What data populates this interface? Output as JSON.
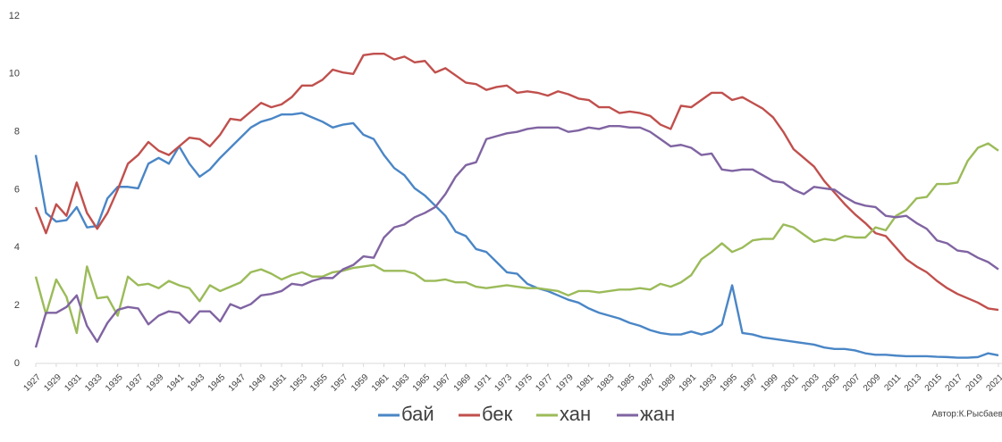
{
  "chart_data": {
    "type": "line",
    "x": [
      1927,
      1928,
      1929,
      1930,
      1931,
      1932,
      1933,
      1934,
      1935,
      1936,
      1937,
      1938,
      1939,
      1940,
      1941,
      1942,
      1943,
      1944,
      1945,
      1946,
      1947,
      1948,
      1949,
      1950,
      1951,
      1952,
      1953,
      1954,
      1955,
      1956,
      1957,
      1958,
      1959,
      1960,
      1961,
      1962,
      1963,
      1964,
      1965,
      1966,
      1967,
      1968,
      1969,
      1970,
      1971,
      1972,
      1973,
      1974,
      1975,
      1976,
      1977,
      1978,
      1979,
      1980,
      1981,
      1982,
      1983,
      1984,
      1985,
      1986,
      1987,
      1988,
      1989,
      1990,
      1991,
      1992,
      1993,
      1994,
      1995,
      1996,
      1997,
      1998,
      1999,
      2000,
      2001,
      2002,
      2003,
      2004,
      2005,
      2006,
      2007,
      2008,
      2009,
      2010,
      2011,
      2012,
      2013,
      2014,
      2015,
      2016,
      2017,
      2018,
      2019,
      2020,
      2021
    ],
    "xlim": [
      1927,
      2021
    ],
    "xticks": [
      1927,
      1929,
      1931,
      1933,
      1935,
      1937,
      1939,
      1941,
      1943,
      1945,
      1947,
      1949,
      1951,
      1953,
      1955,
      1957,
      1959,
      1961,
      1963,
      1965,
      1967,
      1969,
      1971,
      1973,
      1975,
      1977,
      1979,
      1981,
      1983,
      1985,
      1987,
      1989,
      1991,
      1993,
      1995,
      1997,
      1999,
      2001,
      2003,
      2005,
      2007,
      2009,
      2011,
      2013,
      2015,
      2017,
      2019,
      2021
    ],
    "ylim": [
      0,
      12
    ],
    "yticks": [
      0,
      2,
      4,
      6,
      8,
      10,
      12
    ],
    "grid": false,
    "legend": "bottom",
    "annotation": "Автор:К.Рысбаев",
    "series": [
      {
        "name": "бай",
        "color": "#4a86c6",
        "values": [
          7.2,
          5.2,
          4.9,
          4.95,
          5.4,
          4.7,
          4.75,
          5.7,
          6.1,
          6.1,
          6.05,
          6.9,
          7.1,
          6.9,
          7.5,
          6.9,
          6.45,
          6.7,
          7.1,
          7.45,
          7.8,
          8.15,
          8.35,
          8.45,
          8.6,
          8.6,
          8.65,
          8.5,
          8.35,
          8.15,
          8.25,
          8.3,
          7.9,
          7.75,
          7.2,
          6.75,
          6.5,
          6.05,
          5.8,
          5.45,
          5.1,
          4.55,
          4.4,
          3.95,
          3.85,
          3.5,
          3.15,
          3.1,
          2.75,
          2.6,
          2.5,
          2.35,
          2.2,
          2.1,
          1.9,
          1.75,
          1.65,
          1.55,
          1.4,
          1.3,
          1.15,
          1.05,
          1.0,
          1.0,
          1.1,
          1.0,
          1.1,
          1.35,
          2.7,
          1.05,
          1.0,
          0.9,
          0.85,
          0.8,
          0.75,
          0.7,
          0.65,
          0.55,
          0.5,
          0.5,
          0.45,
          0.35,
          0.3,
          0.3,
          0.27,
          0.25,
          0.25,
          0.25,
          0.23,
          0.22,
          0.2,
          0.2,
          0.22,
          0.35,
          0.28
        ]
      },
      {
        "name": "бек",
        "color": "#c0504d",
        "values": [
          5.4,
          4.5,
          5.5,
          5.1,
          6.25,
          5.2,
          4.65,
          5.2,
          6.0,
          6.9,
          7.2,
          7.65,
          7.35,
          7.2,
          7.5,
          7.8,
          7.75,
          7.5,
          7.9,
          8.45,
          8.4,
          8.7,
          9.0,
          8.85,
          8.95,
          9.2,
          9.6,
          9.6,
          9.8,
          10.15,
          10.05,
          10.0,
          10.65,
          10.7,
          10.7,
          10.5,
          10.6,
          10.4,
          10.45,
          10.05,
          10.2,
          9.95,
          9.7,
          9.65,
          9.45,
          9.55,
          9.6,
          9.35,
          9.4,
          9.35,
          9.25,
          9.4,
          9.3,
          9.15,
          9.1,
          8.85,
          8.85,
          8.65,
          8.7,
          8.65,
          8.55,
          8.25,
          8.1,
          8.9,
          8.85,
          9.1,
          9.35,
          9.35,
          9.1,
          9.2,
          9.0,
          8.8,
          8.5,
          8.0,
          7.4,
          7.1,
          6.8,
          6.3,
          5.9,
          5.5,
          5.15,
          4.85,
          4.5,
          4.4,
          4.0,
          3.6,
          3.35,
          3.15,
          2.85,
          2.6,
          2.4,
          2.25,
          2.1,
          1.9,
          1.85
        ]
      },
      {
        "name": "хан",
        "color": "#9bbb59",
        "values": [
          3.0,
          1.7,
          2.9,
          2.3,
          1.05,
          3.35,
          2.25,
          2.3,
          1.65,
          3.0,
          2.7,
          2.75,
          2.6,
          2.85,
          2.7,
          2.6,
          2.15,
          2.7,
          2.5,
          2.65,
          2.8,
          3.15,
          3.25,
          3.1,
          2.9,
          3.05,
          3.15,
          3.0,
          3.0,
          3.15,
          3.2,
          3.3,
          3.35,
          3.4,
          3.2,
          3.2,
          3.2,
          3.1,
          2.85,
          2.85,
          2.9,
          2.8,
          2.8,
          2.65,
          2.6,
          2.65,
          2.7,
          2.65,
          2.6,
          2.6,
          2.55,
          2.5,
          2.35,
          2.5,
          2.5,
          2.45,
          2.5,
          2.55,
          2.55,
          2.6,
          2.55,
          2.75,
          2.65,
          2.8,
          3.05,
          3.6,
          3.85,
          4.15,
          3.85,
          4.0,
          4.25,
          4.3,
          4.3,
          4.8,
          4.7,
          4.45,
          4.2,
          4.3,
          4.25,
          4.4,
          4.35,
          4.35,
          4.7,
          4.6,
          5.1,
          5.3,
          5.7,
          5.75,
          6.2,
          6.2,
          6.25,
          7.0,
          7.45,
          7.6,
          7.35
        ]
      },
      {
        "name": "жан",
        "color": "#8064a2",
        "values": [
          0.55,
          1.75,
          1.75,
          1.95,
          2.35,
          1.3,
          0.75,
          1.4,
          1.85,
          1.95,
          1.9,
          1.35,
          1.65,
          1.8,
          1.75,
          1.4,
          1.8,
          1.8,
          1.45,
          2.05,
          1.9,
          2.05,
          2.35,
          2.4,
          2.5,
          2.75,
          2.7,
          2.85,
          2.95,
          2.95,
          3.25,
          3.4,
          3.7,
          3.65,
          4.35,
          4.7,
          4.8,
          5.05,
          5.2,
          5.4,
          5.85,
          6.45,
          6.85,
          6.95,
          7.75,
          7.85,
          7.95,
          8.0,
          8.1,
          8.15,
          8.15,
          8.15,
          8.0,
          8.05,
          8.15,
          8.1,
          8.2,
          8.2,
          8.15,
          8.15,
          8.0,
          7.75,
          7.5,
          7.55,
          7.45,
          7.2,
          7.25,
          6.7,
          6.65,
          6.7,
          6.7,
          6.5,
          6.3,
          6.25,
          6.0,
          5.85,
          6.1,
          6.05,
          6.0,
          5.75,
          5.55,
          5.45,
          5.4,
          5.1,
          5.05,
          5.1,
          4.85,
          4.65,
          4.25,
          4.15,
          3.9,
          3.85,
          3.65,
          3.5,
          3.25
        ]
      }
    ]
  }
}
